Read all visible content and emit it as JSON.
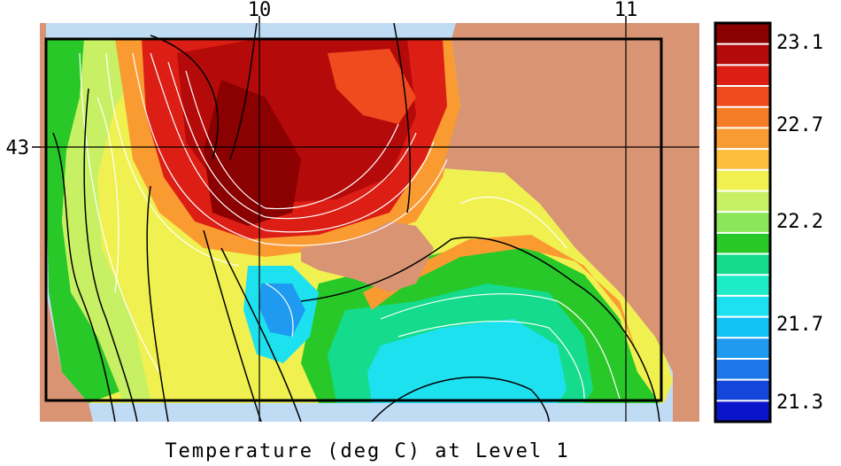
{
  "map": {
    "caption": "Temperature (deg C) at Level 1",
    "lon_ticks": [
      "10",
      "11"
    ],
    "lat_ticks": [
      "43"
    ],
    "colors": {
      "land": "#d99473",
      "no_data": "#c0dcf5",
      "frame": "#000000"
    }
  },
  "colorbar": {
    "labels": [
      "23.1",
      "22.7",
      "22.2",
      "21.7",
      "21.3"
    ],
    "colors": [
      "#8b0000",
      "#b40a0a",
      "#dc1e14",
      "#f04b1e",
      "#f57d28",
      "#fa9b32",
      "#fcbe3c",
      "#f0f050",
      "#c8f064",
      "#8ce65a",
      "#28c828",
      "#14dc8c",
      "#1eebc8",
      "#1ee1f0",
      "#14c3f5",
      "#1e9bf0",
      "#1e78eb",
      "#1446dc",
      "#0a14c8"
    ]
  }
}
